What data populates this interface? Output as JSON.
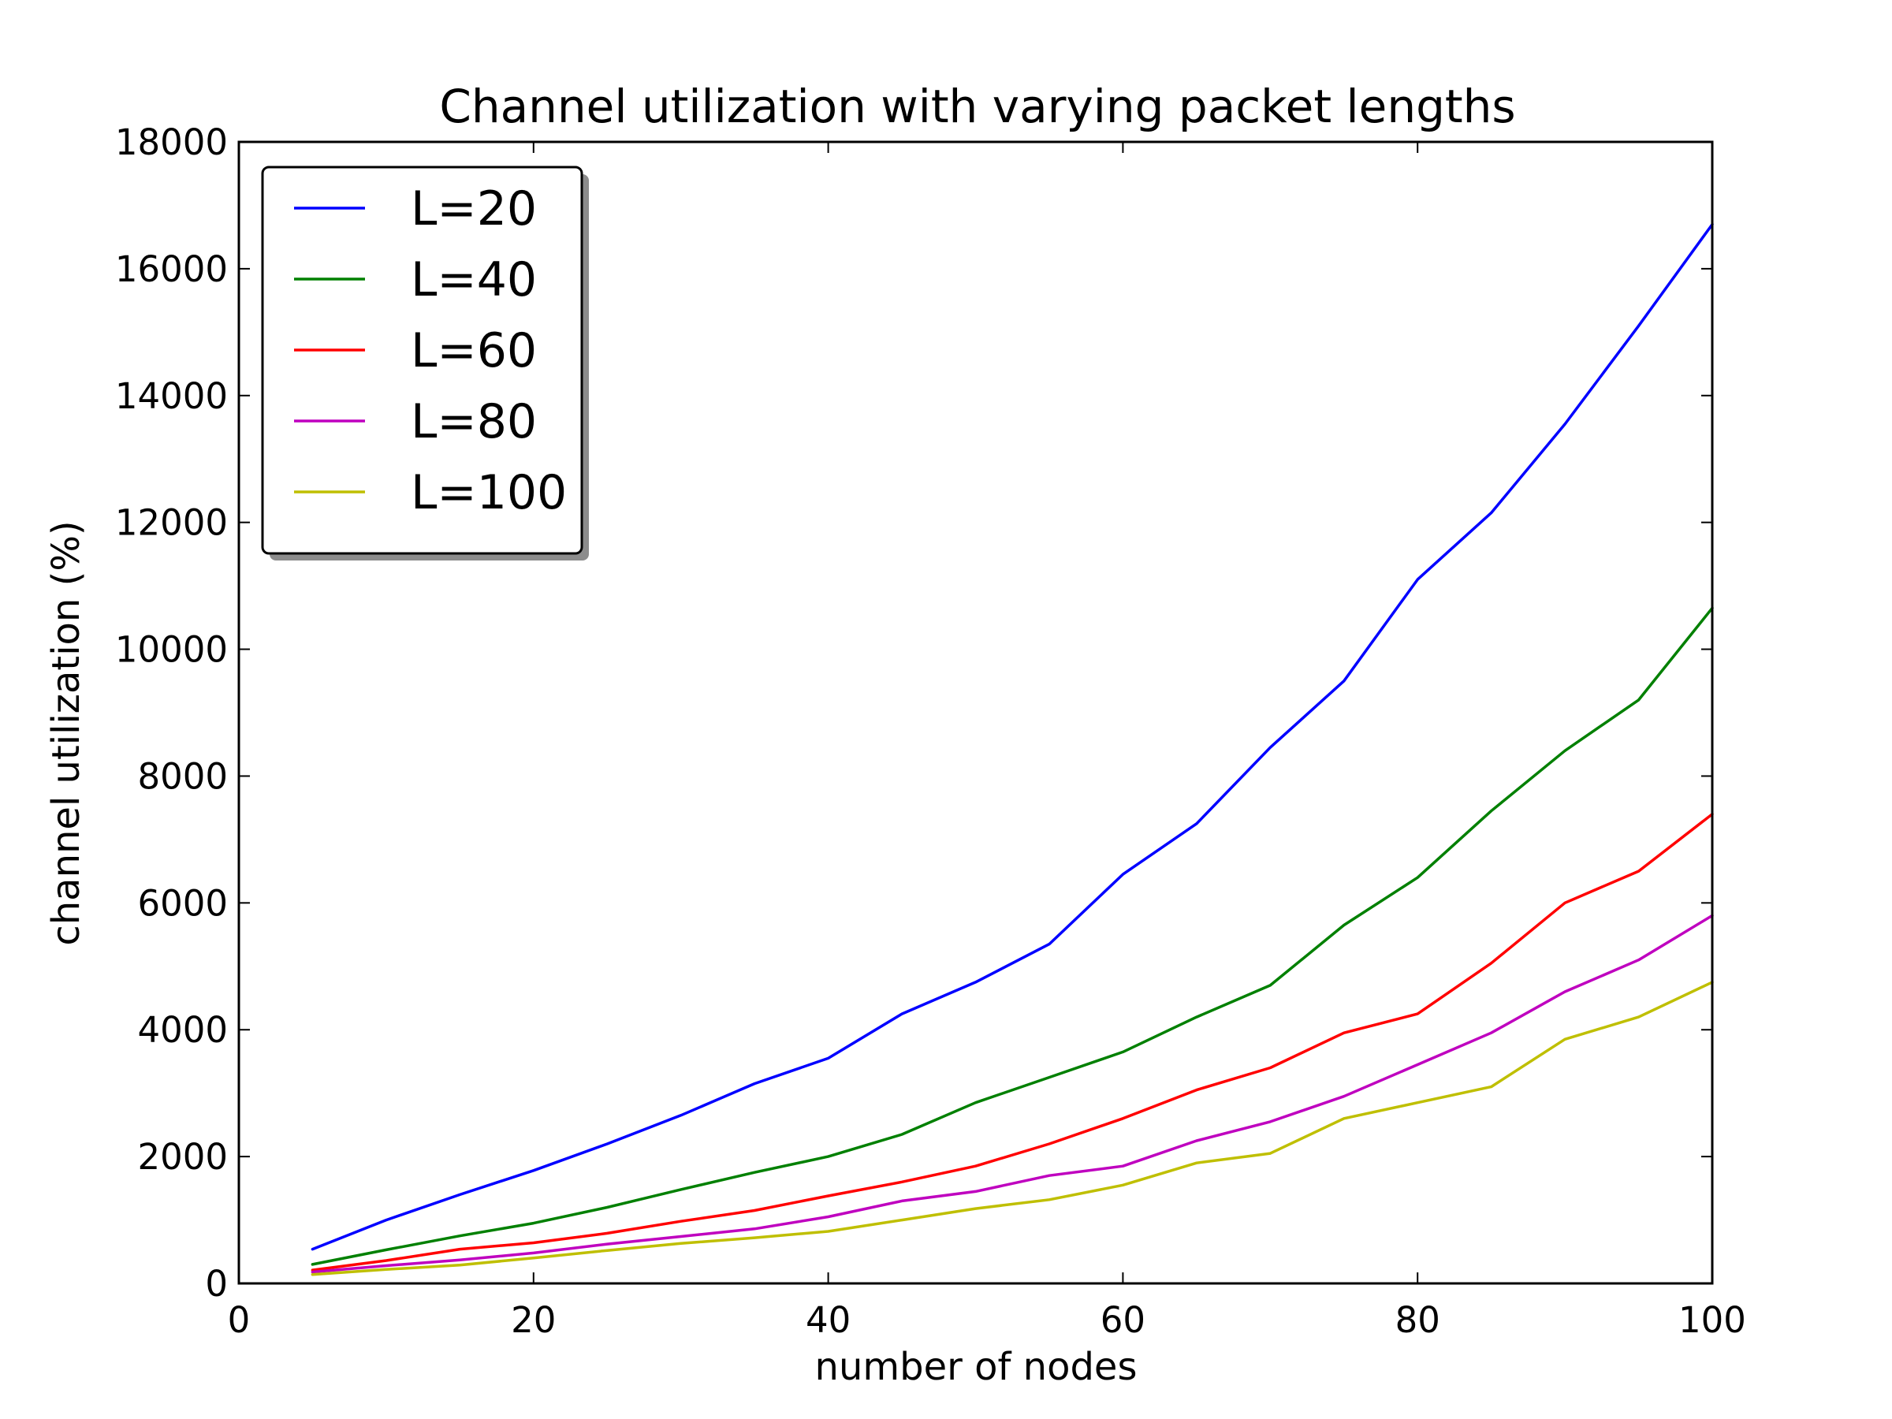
{
  "chart_data": {
    "type": "line",
    "title": "Channel utilization with varying packet lengths",
    "xlabel": "number of nodes",
    "ylabel": "channel utilization (%)",
    "xlim": [
      0,
      100
    ],
    "ylim": [
      0,
      18000
    ],
    "xticks": [
      0,
      20,
      40,
      60,
      80,
      100
    ],
    "yticks": [
      0,
      2000,
      4000,
      6000,
      8000,
      10000,
      12000,
      14000,
      16000,
      18000
    ],
    "grid": false,
    "legend_position": "top-left",
    "x": [
      5,
      10,
      15,
      20,
      25,
      30,
      35,
      40,
      45,
      50,
      55,
      60,
      65,
      70,
      75,
      80,
      85,
      90,
      95,
      100
    ],
    "series": [
      {
        "name": "L=20",
        "color": "#0000ff",
        "values": [
          540,
          1000,
          1400,
          1780,
          2200,
          2650,
          3150,
          3550,
          4250,
          4750,
          5350,
          6450,
          7250,
          8450,
          9500,
          11100,
          12150,
          13550,
          15100,
          16700
        ]
      },
      {
        "name": "L=40",
        "color": "#008000",
        "values": [
          300,
          530,
          750,
          950,
          1200,
          1480,
          1750,
          2000,
          2350,
          2850,
          3250,
          3650,
          4200,
          4700,
          5650,
          6400,
          7450,
          8400,
          9200,
          10650
        ]
      },
      {
        "name": "L=60",
        "color": "#ff0000",
        "values": [
          210,
          360,
          540,
          640,
          790,
          980,
          1150,
          1380,
          1600,
          1850,
          2200,
          2600,
          3050,
          3400,
          3950,
          4250,
          5050,
          6000,
          6500,
          7400
        ]
      },
      {
        "name": "L=80",
        "color": "#bf00bf",
        "values": [
          180,
          280,
          370,
          480,
          620,
          740,
          860,
          1050,
          1300,
          1450,
          1700,
          1850,
          2250,
          2550,
          2950,
          3450,
          3950,
          4600,
          5100,
          5800
        ]
      },
      {
        "name": "L=100",
        "color": "#bfbf00",
        "values": [
          140,
          220,
          290,
          400,
          520,
          630,
          720,
          820,
          1000,
          1180,
          1320,
          1550,
          1900,
          2050,
          2600,
          2850,
          3100,
          3850,
          4200,
          4750
        ]
      }
    ]
  }
}
